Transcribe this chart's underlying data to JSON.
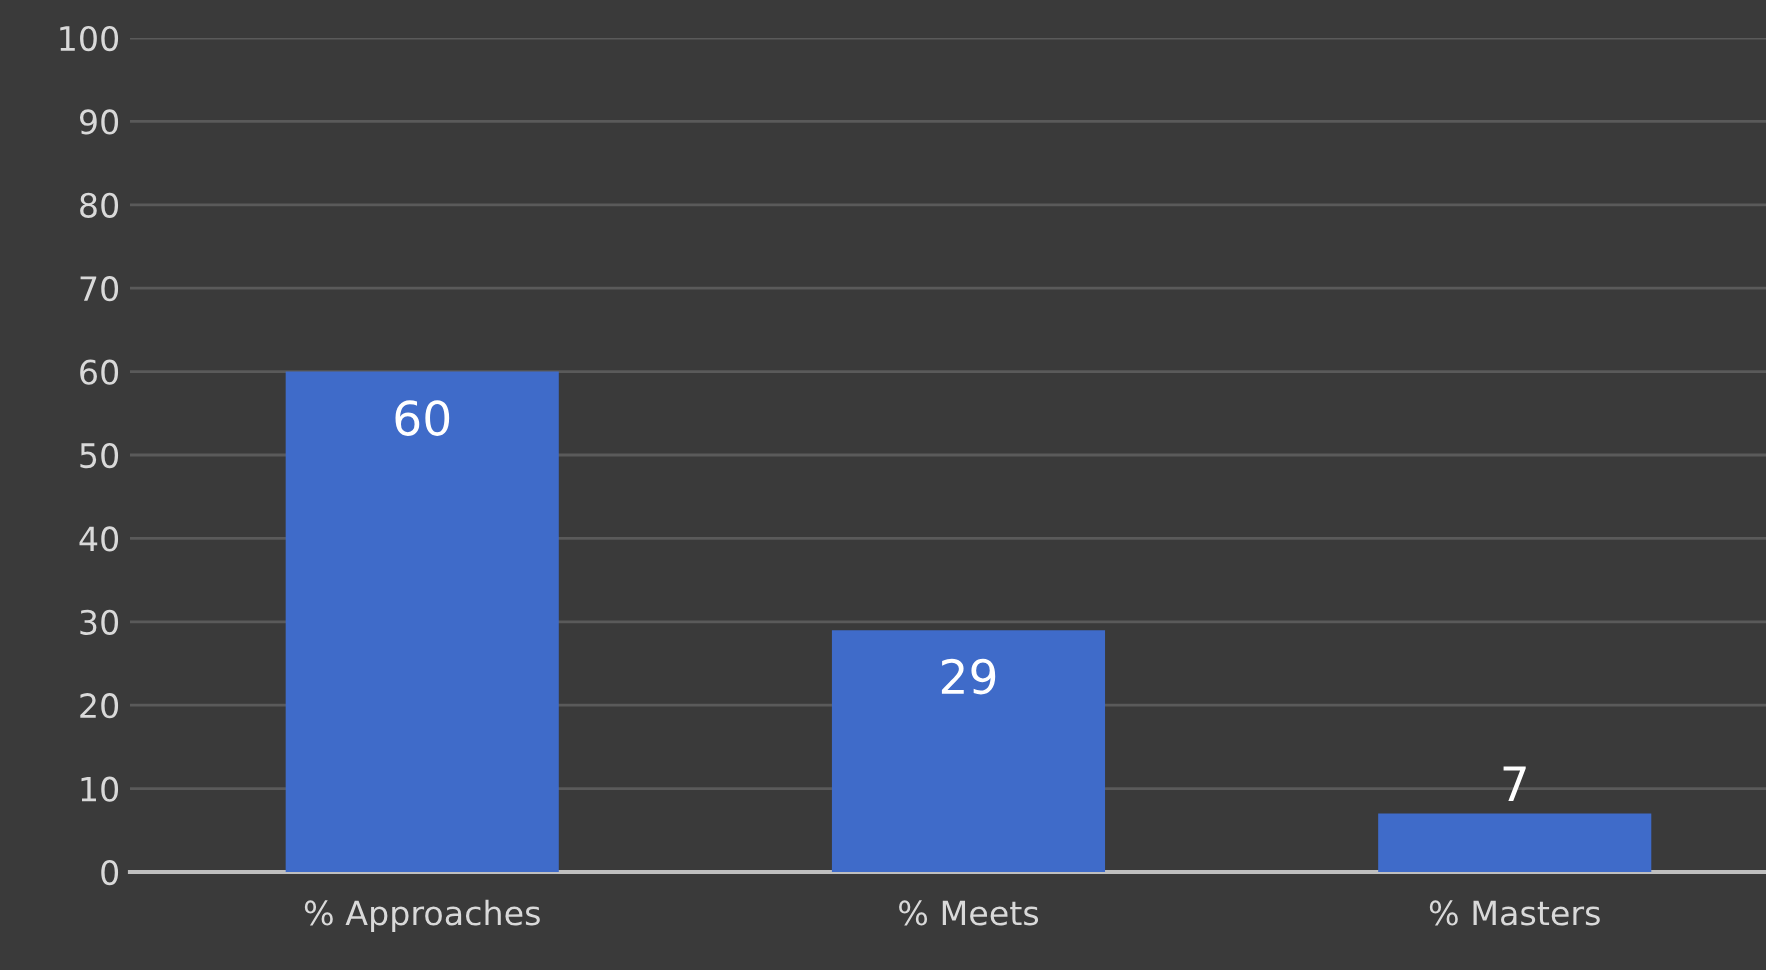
{
  "chart_data": {
    "type": "bar",
    "categories": [
      "% Approaches",
      "% Meets",
      "% Masters"
    ],
    "values": [
      60,
      29,
      7
    ],
    "color": "#3f6bc9",
    "ylim": [
      0,
      100
    ],
    "yticks": [
      0,
      10,
      20,
      30,
      40,
      50,
      60,
      70,
      80,
      90,
      100
    ],
    "grid": "y",
    "data_labels": true
  }
}
